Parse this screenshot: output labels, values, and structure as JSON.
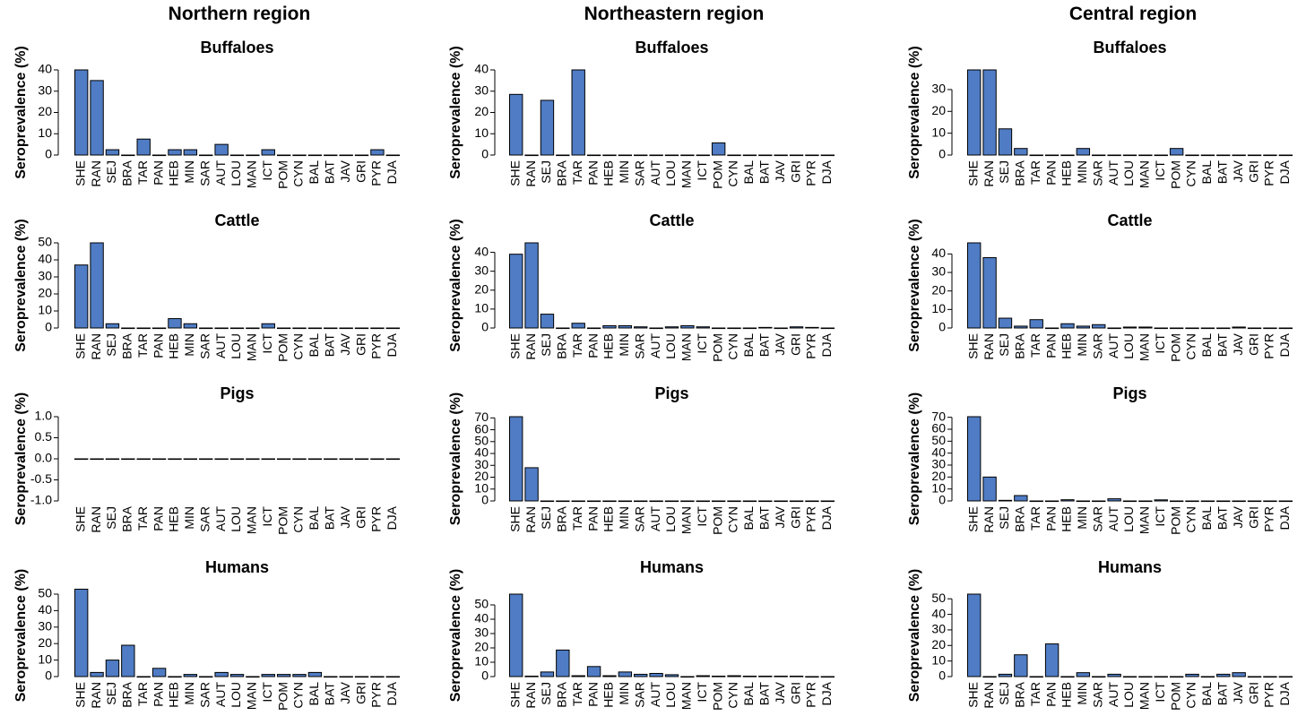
{
  "figure": {
    "region_titles": [
      "Northern region",
      "Northeastern region",
      "Central region"
    ]
  },
  "chart_data": [
    {
      "type": "bar",
      "region": "Northern region",
      "title": "Buffaloes",
      "ylabel": "Seroprevalence (%)",
      "categories": [
        "SHE",
        "RAN",
        "SEJ",
        "BRA",
        "TAR",
        "PAN",
        "HEB",
        "MIN",
        "SAR",
        "AUT",
        "LOU",
        "MAN",
        "ICT",
        "POM",
        "CYN",
        "BAL",
        "BAT",
        "JAV",
        "GRI",
        "PYR",
        "DJA"
      ],
      "values": [
        40,
        35,
        2.5,
        0,
        7.5,
        0,
        2.5,
        2.5,
        0,
        5,
        0,
        0,
        2.5,
        0,
        0,
        0,
        0,
        0,
        0,
        2.5,
        0
      ],
      "ylim": [
        0,
        40
      ],
      "yticks": [
        0,
        10,
        20,
        30,
        40
      ]
    },
    {
      "type": "bar",
      "region": "Northern region",
      "title": "Cattle",
      "ylabel": "Seroprevalence (%)",
      "categories": [
        "SHE",
        "RAN",
        "SEJ",
        "BRA",
        "TAR",
        "PAN",
        "HEB",
        "MIN",
        "SAR",
        "AUT",
        "LOU",
        "MAN",
        "ICT",
        "POM",
        "CYN",
        "BAL",
        "BAT",
        "JAV",
        "GRI",
        "PYR",
        "DJA"
      ],
      "values": [
        37,
        50,
        2.5,
        0,
        0,
        0,
        5.5,
        2.5,
        0,
        0,
        0,
        0,
        2.5,
        0,
        0,
        0,
        0,
        0,
        0,
        0,
        0
      ],
      "ylim": [
        0,
        50
      ],
      "yticks": [
        0,
        10,
        20,
        30,
        40,
        50
      ]
    },
    {
      "type": "bar",
      "region": "Northern region",
      "title": "Pigs",
      "ylabel": "Seroprevalence (%)",
      "categories": [
        "SHE",
        "RAN",
        "SEJ",
        "BRA",
        "TAR",
        "PAN",
        "HEB",
        "MIN",
        "SAR",
        "AUT",
        "LOU",
        "MAN",
        "ICT",
        "POM",
        "CYN",
        "BAL",
        "BAT",
        "JAV",
        "GRI",
        "PYR",
        "DJA"
      ],
      "values": [
        0,
        0,
        0,
        0,
        0,
        0,
        0,
        0,
        0,
        0,
        0,
        0,
        0,
        0,
        0,
        0,
        0,
        0,
        0,
        0,
        0
      ],
      "ylim": [
        -1,
        1
      ],
      "yticks": [
        -1.0,
        -0.5,
        0.0,
        0.5,
        1.0
      ]
    },
    {
      "type": "bar",
      "region": "Northern region",
      "title": "Humans",
      "ylabel": "Seroprevalence (%)",
      "categories": [
        "SHE",
        "RAN",
        "SEJ",
        "BRA",
        "TAR",
        "PAN",
        "HEB",
        "MIN",
        "SAR",
        "AUT",
        "LOU",
        "MAN",
        "ICT",
        "POM",
        "CYN",
        "BAL",
        "BAT",
        "JAV",
        "GRI",
        "PYR",
        "DJA"
      ],
      "values": [
        53,
        2.5,
        10,
        19,
        0,
        5,
        0,
        1.3,
        0,
        2.5,
        1.3,
        0,
        1.3,
        1.3,
        1.3,
        2.5,
        0,
        0,
        0,
        0,
        0
      ],
      "ylim": [
        0,
        50
      ],
      "yticks": [
        0,
        10,
        20,
        30,
        40,
        50
      ]
    },
    {
      "type": "bar",
      "region": "Northeastern region",
      "title": "Buffaloes",
      "ylabel": "Seroprevalence (%)",
      "categories": [
        "SHE",
        "RAN",
        "SEJ",
        "BRA",
        "TAR",
        "PAN",
        "HEB",
        "MIN",
        "SAR",
        "AUT",
        "LOU",
        "MAN",
        "ICT",
        "POM",
        "CYN",
        "BAL",
        "BAT",
        "JAV",
        "GRI",
        "PYR",
        "DJA"
      ],
      "values": [
        28.5,
        0,
        25.7,
        0,
        40,
        0,
        0,
        0,
        0,
        0,
        0,
        0,
        0,
        5.7,
        0,
        0,
        0,
        0,
        0,
        0,
        0
      ],
      "ylim": [
        0,
        40
      ],
      "yticks": [
        0,
        10,
        20,
        30,
        40
      ]
    },
    {
      "type": "bar",
      "region": "Northeastern region",
      "title": "Cattle",
      "ylabel": "Seroprevalence (%)",
      "categories": [
        "SHE",
        "RAN",
        "SEJ",
        "BRA",
        "TAR",
        "PAN",
        "HEB",
        "MIN",
        "SAR",
        "AUT",
        "LOU",
        "MAN",
        "ICT",
        "POM",
        "CYN",
        "BAL",
        "BAT",
        "JAV",
        "GRI",
        "PYR",
        "DJA"
      ],
      "values": [
        39,
        45,
        7.3,
        0,
        2.5,
        0,
        1.2,
        1.2,
        0.6,
        0,
        0.6,
        1.2,
        0.6,
        0,
        0,
        0,
        0.3,
        0,
        0.6,
        0.3,
        0
      ],
      "ylim": [
        0,
        45
      ],
      "yticks": [
        0,
        10,
        20,
        30,
        40
      ]
    },
    {
      "type": "bar",
      "region": "Northeastern region",
      "title": "Pigs",
      "ylabel": "Seroprevalence (%)",
      "categories": [
        "SHE",
        "RAN",
        "SEJ",
        "BRA",
        "TAR",
        "PAN",
        "HEB",
        "MIN",
        "SAR",
        "AUT",
        "LOU",
        "MAN",
        "ICT",
        "POM",
        "CYN",
        "BAL",
        "BAT",
        "JAV",
        "GRI",
        "PYR",
        "DJA"
      ],
      "values": [
        71,
        28,
        0,
        0,
        0,
        0,
        0,
        0,
        0,
        0,
        0,
        0,
        0,
        0,
        0,
        0,
        0,
        0,
        0,
        0,
        0
      ],
      "ylim": [
        0,
        71
      ],
      "yticks": [
        0,
        10,
        20,
        30,
        40,
        50,
        60,
        70
      ]
    },
    {
      "type": "bar",
      "region": "Northeastern region",
      "title": "Humans",
      "ylabel": "Seroprevalence (%)",
      "categories": [
        "SHE",
        "RAN",
        "SEJ",
        "BRA",
        "TAR",
        "PAN",
        "HEB",
        "MIN",
        "SAR",
        "AUT",
        "LOU",
        "MAN",
        "ICT",
        "POM",
        "CYN",
        "BAL",
        "BAT",
        "JAV",
        "GRI",
        "PYR",
        "DJA"
      ],
      "values": [
        57.5,
        0.3,
        3.2,
        18.5,
        0.6,
        7,
        0.6,
        3.2,
        1.6,
        2.2,
        1.3,
        0,
        0.6,
        0.3,
        0.6,
        0.3,
        0.3,
        0.3,
        0.3,
        0,
        0
      ],
      "ylim": [
        0,
        57.5
      ],
      "yticks": [
        0,
        10,
        20,
        30,
        40,
        50
      ]
    },
    {
      "type": "bar",
      "region": "Central region",
      "title": "Buffaloes",
      "ylabel": "Seroprevalence (%)",
      "categories": [
        "SHE",
        "RAN",
        "SEJ",
        "BRA",
        "TAR",
        "PAN",
        "HEB",
        "MIN",
        "SAR",
        "AUT",
        "LOU",
        "MAN",
        "ICT",
        "POM",
        "CYN",
        "BAL",
        "BAT",
        "JAV",
        "GRI",
        "PYR",
        "DJA"
      ],
      "values": [
        39,
        39,
        12,
        3,
        0,
        0,
        0,
        3,
        0,
        0,
        0,
        0,
        0,
        3,
        0,
        0,
        0,
        0,
        0,
        0,
        0
      ],
      "ylim": [
        0,
        39
      ],
      "yticks": [
        0,
        10,
        20,
        30
      ]
    },
    {
      "type": "bar",
      "region": "Central region",
      "title": "Cattle",
      "ylabel": "Seroprevalence (%)",
      "categories": [
        "SHE",
        "RAN",
        "SEJ",
        "BRA",
        "TAR",
        "PAN",
        "HEB",
        "MIN",
        "SAR",
        "AUT",
        "LOU",
        "MAN",
        "ICT",
        "POM",
        "CYN",
        "BAL",
        "BAT",
        "JAV",
        "GRI",
        "PYR",
        "DJA"
      ],
      "values": [
        46,
        38,
        5.3,
        1,
        4.5,
        0,
        2.3,
        1,
        1.8,
        0,
        0.5,
        0.5,
        0,
        0,
        0,
        0,
        0,
        0.5,
        0,
        0,
        0
      ],
      "ylim": [
        0,
        46
      ],
      "yticks": [
        0,
        10,
        20,
        30,
        40
      ]
    },
    {
      "type": "bar",
      "region": "Central region",
      "title": "Pigs",
      "ylabel": "Seroprevalence (%)",
      "categories": [
        "SHE",
        "RAN",
        "SEJ",
        "BRA",
        "TAR",
        "PAN",
        "HEB",
        "MIN",
        "SAR",
        "AUT",
        "LOU",
        "MAN",
        "ICT",
        "POM",
        "CYN",
        "BAL",
        "BAT",
        "JAV",
        "GRI",
        "PYR",
        "DJA"
      ],
      "values": [
        70.5,
        20,
        0.5,
        4.5,
        0,
        0,
        1,
        0,
        0,
        1.8,
        0,
        0,
        0.9,
        0,
        0,
        0,
        0,
        0,
        0,
        0,
        0
      ],
      "ylim": [
        0,
        70.5
      ],
      "yticks": [
        0,
        10,
        20,
        30,
        40,
        50,
        60,
        70
      ]
    },
    {
      "type": "bar",
      "region": "Central region",
      "title": "Humans",
      "ylabel": "Seroprevalence (%)",
      "categories": [
        "SHE",
        "RAN",
        "SEJ",
        "BRA",
        "TAR",
        "PAN",
        "HEB",
        "MIN",
        "SAR",
        "AUT",
        "LOU",
        "MAN",
        "ICT",
        "POM",
        "CYN",
        "BAL",
        "BAT",
        "JAV",
        "GRI",
        "PYR",
        "DJA"
      ],
      "values": [
        53,
        0,
        1.5,
        14,
        0,
        21,
        0,
        2.5,
        0,
        1.5,
        0,
        0,
        0,
        0,
        1.5,
        0,
        1.5,
        2.5,
        0,
        0,
        0
      ],
      "ylim": [
        0,
        53
      ],
      "yticks": [
        0,
        10,
        20,
        30,
        40,
        50
      ]
    }
  ],
  "colors": {
    "bar_fill": "#4f7cc4",
    "bar_stroke": "#000000",
    "axis": "#000000",
    "text": "#000000"
  }
}
